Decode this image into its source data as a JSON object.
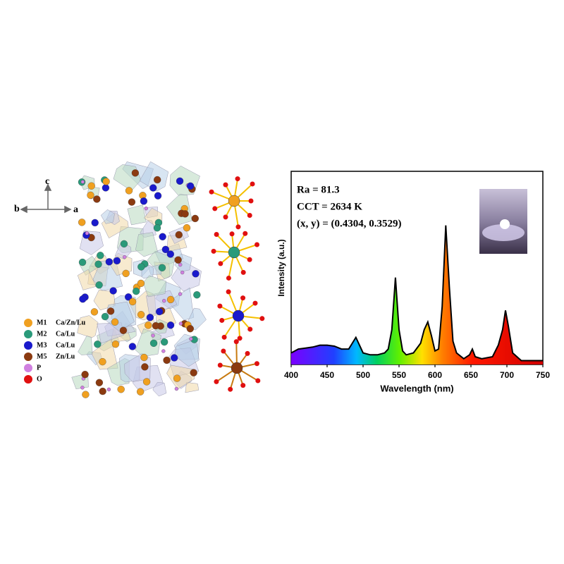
{
  "structure": {
    "axes": {
      "c": "c",
      "b": "b",
      "a": "a"
    },
    "legend": [
      {
        "label": "M1",
        "sites": "Ca/Zn/Lu",
        "color": "#f0a020"
      },
      {
        "label": "M2",
        "sites": "Ca/Lu",
        "color": "#2a9a7a"
      },
      {
        "label": "M3",
        "sites": "Ca/Lu",
        "color": "#1a1acc"
      },
      {
        "label": "M5",
        "sites": "Zn/Lu",
        "color": "#8b3a10"
      },
      {
        "label": "P",
        "color": "#d080e0"
      },
      {
        "label": "O",
        "color": "#e01010"
      }
    ]
  },
  "chart_data": {
    "type": "area",
    "x_label": "Wavelength (nm)",
    "y_label": "Intensity (a.u.)",
    "annotations": [
      "Ra = 81.3",
      "CCT = 2634 K",
      "(x, y) = (0.4304, 0.3529)"
    ],
    "x": [
      400,
      410,
      420,
      430,
      440,
      450,
      460,
      470,
      480,
      485,
      490,
      495,
      500,
      510,
      520,
      530,
      535,
      540,
      545,
      550,
      555,
      560,
      570,
      580,
      585,
      590,
      595,
      600,
      605,
      610,
      615,
      620,
      625,
      630,
      640,
      648,
      652,
      656,
      665,
      680,
      688,
      694,
      698,
      702,
      708,
      720,
      735,
      750
    ],
    "values": [
      0.06,
      0.08,
      0.085,
      0.09,
      0.1,
      0.1,
      0.095,
      0.08,
      0.08,
      0.11,
      0.14,
      0.1,
      0.06,
      0.05,
      0.05,
      0.06,
      0.08,
      0.18,
      0.45,
      0.18,
      0.07,
      0.05,
      0.06,
      0.11,
      0.18,
      0.22,
      0.15,
      0.07,
      0.08,
      0.3,
      0.72,
      0.4,
      0.12,
      0.06,
      0.03,
      0.05,
      0.08,
      0.04,
      0.03,
      0.04,
      0.1,
      0.18,
      0.28,
      0.2,
      0.06,
      0.02,
      0.02,
      0.02
    ],
    "color": "#000000",
    "xlim": [
      400,
      750
    ],
    "ylim": [
      0,
      1
    ],
    "xticks": [
      400,
      450,
      500,
      550,
      600,
      650,
      700,
      750
    ]
  }
}
